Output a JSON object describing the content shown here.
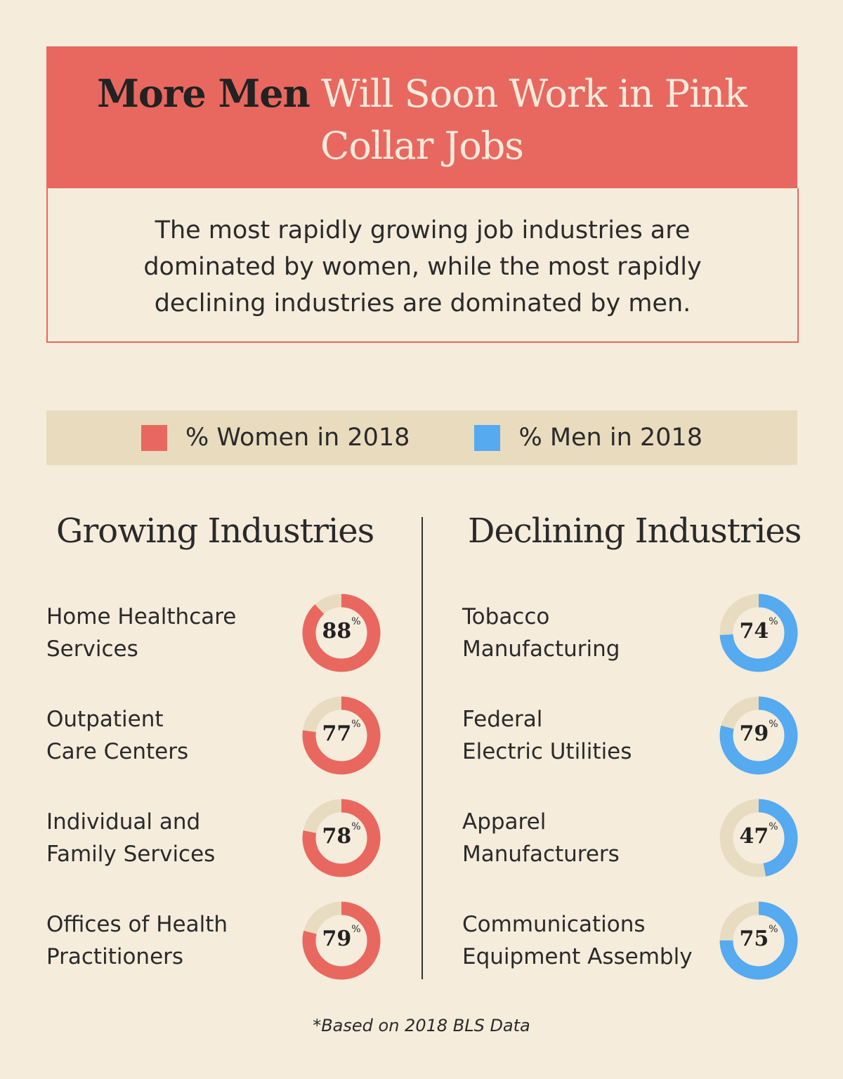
{
  "header": {
    "title_bold": "More Men",
    "title_rest": " Will Soon Work in Pink Collar Jobs",
    "subtitle": "The most rapidly growing job industries are dominated by women, while the most rapidly declining industries are dominated by men."
  },
  "legend": {
    "women": "% Women in 2018",
    "men": "% Men in 2018"
  },
  "colors": {
    "women": "#E8685F",
    "men": "#55AAF0",
    "track": "#E8DCC0",
    "background": "#F5ECDC"
  },
  "chart_data": [
    {
      "type": "pie",
      "variant": "donut",
      "title": "Growing Industries",
      "series_name": "% Women in 2018",
      "categories": [
        "Home Healthcare Services",
        "Outpatient Care Centers",
        "Individual and Family Services",
        "Offices of Health Practitioners"
      ],
      "labels": [
        "Home Healthcare\nServices",
        "Outpatient\nCare Centers",
        "Individual and\nFamily Services",
        "Offices of Health\nPractitioners"
      ],
      "values": [
        88,
        77,
        78,
        79
      ]
    },
    {
      "type": "pie",
      "variant": "donut",
      "title": "Declining Industries",
      "series_name": "% Men in 2018",
      "categories": [
        "Tobacco Manufacturing",
        "Federal Electric Utilities",
        "Apparel Manufacturers",
        "Communications Equipment Assembly"
      ],
      "labels": [
        "Tobacco\nManufacturing",
        "Federal\nElectric Utilities",
        "Apparel\nManufacturers",
        "Communications\nEquipment Assembly"
      ],
      "values": [
        74,
        79,
        47,
        75
      ]
    }
  ],
  "footnote": "*Based on 2018 BLS Data"
}
